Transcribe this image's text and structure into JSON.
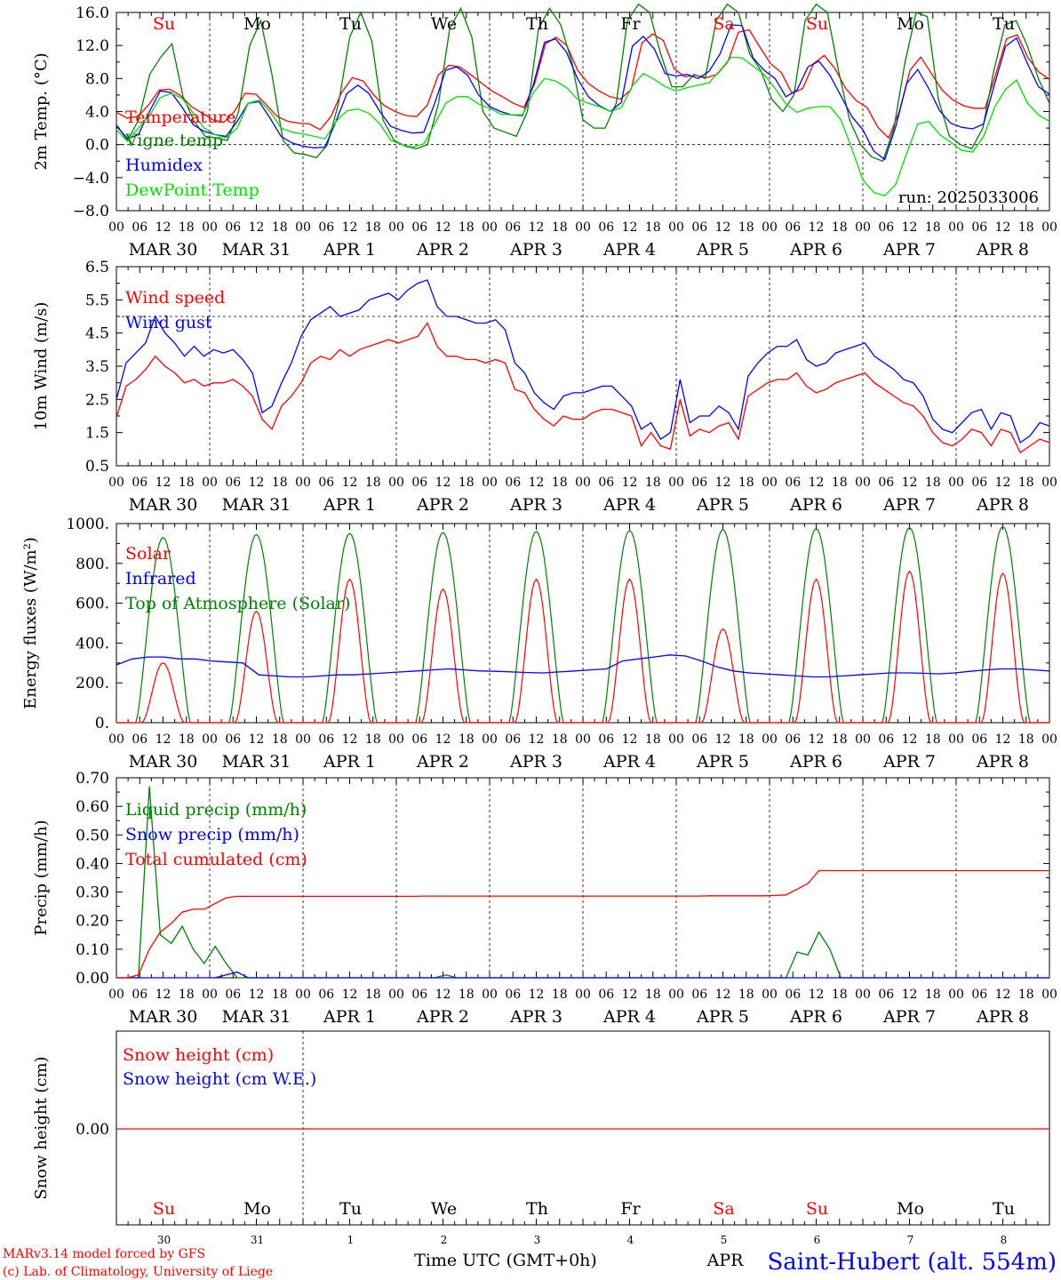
{
  "footer": {
    "model": "MARv3.14 model forced by GFS",
    "credit": "(c) Lab. of Climatology, University of Liege",
    "xlabel": "Time UTC (GMT+0h)",
    "station": "Saint-Hubert (alt. 554m)",
    "overlap_text": "APR"
  },
  "day_labels": [
    "Su",
    "Mo",
    "Tu",
    "We",
    "Th",
    "Fr",
    "Sa",
    "Su",
    "Mo",
    "Tu"
  ],
  "weekend_flags": [
    true,
    false,
    false,
    false,
    false,
    false,
    true,
    true,
    false,
    false
  ],
  "date_labels": [
    "MAR 30",
    "MAR 31",
    "APR  1",
    "APR  2",
    "APR  3",
    "APR  4",
    "APR  5",
    "APR  6",
    "APR  7",
    "APR  8"
  ],
  "day_numbers": [
    "30",
    "31",
    "1",
    "2",
    "3",
    "4",
    "5",
    "6",
    "7",
    "8"
  ],
  "hour_ticks": [
    "00",
    "06",
    "12",
    "18"
  ],
  "hour_end": "00",
  "colors": {
    "red": "#ff0000",
    "blue": "#0000ff",
    "dgreen": "#008000",
    "lgreen": "#00e000"
  },
  "chart_data": [
    {
      "type": "line",
      "ylabel": "2m Temp. (°C)",
      "ylim": [
        -8,
        16
      ],
      "yticks": [
        "16.0",
        "12.0",
        "8.0",
        "4.0",
        "0.0",
        "−4.0",
        "−8.0"
      ],
      "run_label": "run: 2025033006",
      "x_hours_step": 3,
      "series": [
        {
          "name": "Temperature",
          "color": "red",
          "values": [
            3.9,
            3.2,
            3.4,
            4.8,
            6.6,
            6.7,
            5.9,
            4.6,
            3.8,
            3.0,
            2.7,
            4.0,
            6.2,
            6.1,
            4.8,
            3.4,
            2.8,
            2.6,
            2.5,
            1.8,
            3.4,
            6.3,
            8.1,
            7.7,
            6.0,
            4.7,
            4.0,
            3.5,
            3.4,
            4.8,
            8.4,
            9.6,
            9.4,
            8.5,
            7.5,
            6.5,
            5.8,
            5.0,
            4.5,
            7.4,
            12.2,
            13.0,
            12.0,
            9.0,
            7.4,
            6.5,
            5.8,
            5.5,
            6.7,
            12.3,
            13.4,
            12.6,
            9.2,
            8.2,
            8.4,
            8.1,
            8.5,
            10.0,
            13.6,
            13.9,
            11.8,
            9.8,
            8.7,
            6.2,
            6.8,
            9.8,
            10.8,
            9.2,
            6.8,
            5.3,
            4.5,
            2.1,
            0.8,
            4.0,
            9.0,
            10.6,
            8.6,
            6.6,
            5.4,
            4.7,
            4.4,
            4.4,
            8.6,
            12.8,
            13.3,
            10.5,
            8.8,
            7.9
          ]
        },
        {
          "name": "Vigne temp",
          "color": "dgreen",
          "values": [
            2.4,
            0.5,
            3.0,
            8.5,
            10.6,
            12.2,
            5.8,
            2.8,
            1.0,
            0.8,
            0.5,
            4.0,
            12.0,
            15.0,
            8.5,
            0.5,
            -1.0,
            -1.2,
            -1.6,
            0.0,
            5.0,
            13.0,
            16.0,
            12.5,
            3.0,
            0.5,
            -0.2,
            -0.5,
            0.0,
            5.0,
            14.0,
            16.5,
            13.0,
            4.0,
            2.0,
            1.5,
            1.0,
            4.0,
            14.0,
            16.5,
            14.5,
            10.0,
            3.0,
            2.0,
            2.0,
            5.0,
            15.0,
            17.0,
            16.0,
            11.0,
            7.0,
            7.0,
            8.5,
            8.0,
            15.0,
            17.0,
            16.0,
            11.0,
            9.0,
            5.5,
            4.0,
            6.0,
            15.0,
            17.0,
            16.0,
            9.0,
            3.0,
            0.0,
            -1.5,
            -2.0,
            2.0,
            10.0,
            16.0,
            15.5,
            5.5,
            1.0,
            0.0,
            -0.5,
            2.0,
            9.0,
            14.5,
            15.0,
            12.0,
            8.0,
            5.0
          ]
        },
        {
          "name": "Humidex",
          "color": "blue",
          "values": [
            2.3,
            0.7,
            1.2,
            4.0,
            6.5,
            6.3,
            4.5,
            2.4,
            1.6,
            1.2,
            1.0,
            2.8,
            5.0,
            5.2,
            3.2,
            1.0,
            0.2,
            -0.2,
            -0.4,
            -0.3,
            2.8,
            6.2,
            7.2,
            6.2,
            4.0,
            2.2,
            1.7,
            1.4,
            1.5,
            5.0,
            9.0,
            9.4,
            8.4,
            6.0,
            4.6,
            4.0,
            3.6,
            3.5,
            7.3,
            12.4,
            12.8,
            11.2,
            8.0,
            5.8,
            4.7,
            4.0,
            5.1,
            11.9,
            13.1,
            11.6,
            8.6,
            8.3,
            8.5,
            8.0,
            8.9,
            11.0,
            14.5,
            14.4,
            10.5,
            9.0,
            8.0,
            5.8,
            6.6,
            9.4,
            10.1,
            8.4,
            5.9,
            3.4,
            1.8,
            -0.8,
            -1.8,
            2.2,
            7.4,
            9.1,
            6.8,
            4.1,
            2.6,
            2.1,
            1.9,
            2.5,
            7.3,
            11.9,
            12.9,
            9.8,
            7.0,
            6.1
          ]
        },
        {
          "name": "DewPoint Temp",
          "color": "lgreen",
          "values": [
            1.8,
            0.4,
            2.0,
            3.5,
            5.7,
            6.2,
            5.6,
            3.8,
            2.0,
            1.2,
            0.8,
            2.0,
            5.0,
            5.4,
            4.0,
            2.0,
            1.5,
            1.3,
            1.0,
            0.7,
            2.8,
            4.1,
            4.3,
            3.8,
            2.5,
            0.5,
            0.0,
            -0.3,
            0.1,
            2.5,
            5.0,
            5.8,
            5.8,
            4.9,
            4.4,
            3.7,
            3.6,
            3.6,
            6.3,
            8.0,
            7.7,
            6.9,
            5.5,
            5.0,
            4.6,
            4.0,
            4.5,
            7.1,
            8.6,
            7.9,
            7.0,
            6.5,
            6.9,
            7.2,
            7.5,
            9.0,
            10.6,
            10.5,
            9.5,
            8.5,
            6.8,
            4.9,
            3.9,
            4.4,
            4.6,
            4.6,
            3.0,
            -0.5,
            -4.3,
            -5.8,
            -6.2,
            -4.8,
            -1.0,
            2.5,
            2.8,
            1.2,
            0.3,
            -0.7,
            -0.9,
            1.0,
            4.5,
            6.7,
            7.8,
            5.0,
            3.6,
            2.8
          ]
        }
      ]
    },
    {
      "type": "line",
      "ylabel": "10m Wind (m/s)",
      "ylim": [
        0.5,
        6.5
      ],
      "yticks": [
        "6.5",
        "5.5",
        "4.5",
        "3.5",
        "2.5",
        "1.5",
        "0.5"
      ],
      "x_hours_step": 3,
      "series": [
        {
          "name": "Wind speed",
          "color": "red",
          "values": [
            1.95,
            2.9,
            3.1,
            3.4,
            3.8,
            3.5,
            3.3,
            3.0,
            3.1,
            2.9,
            3.0,
            3.0,
            3.1,
            2.9,
            2.6,
            1.9,
            1.6,
            2.3,
            2.6,
            3.0,
            3.6,
            3.8,
            3.7,
            4.0,
            3.8,
            4.0,
            4.1,
            4.2,
            4.3,
            4.2,
            4.3,
            4.4,
            4.8,
            4.1,
            3.8,
            3.8,
            3.7,
            3.7,
            3.6,
            3.7,
            3.6,
            2.8,
            2.7,
            2.2,
            1.9,
            1.7,
            2.0,
            1.9,
            1.9,
            2.1,
            2.2,
            2.2,
            2.1,
            2.0,
            1.1,
            1.5,
            1.1,
            1.0,
            2.5,
            1.4,
            1.6,
            1.5,
            1.7,
            1.8,
            1.3,
            2.6,
            2.8,
            3.0,
            3.1,
            3.1,
            3.3,
            2.9,
            2.7,
            2.8,
            3.0,
            3.1,
            3.2,
            3.3,
            3.0,
            2.8,
            2.6,
            2.4,
            2.3,
            2.0,
            1.5,
            1.2,
            1.1,
            1.3,
            1.6,
            1.5,
            1.1,
            1.6,
            1.5,
            0.9,
            1.1,
            1.3,
            1.2
          ]
        },
        {
          "name": "Wind gust",
          "color": "blue",
          "values": [
            2.5,
            3.6,
            3.9,
            4.2,
            5.0,
            4.5,
            4.2,
            3.8,
            4.1,
            3.8,
            4.0,
            3.9,
            4.0,
            3.7,
            3.3,
            2.1,
            2.3,
            3.0,
            3.6,
            4.4,
            4.9,
            5.1,
            5.3,
            5.0,
            5.1,
            5.2,
            5.5,
            5.6,
            5.7,
            5.5,
            5.8,
            6.0,
            6.1,
            5.3,
            5.0,
            5.0,
            4.9,
            4.8,
            4.8,
            4.9,
            4.6,
            3.6,
            3.3,
            2.7,
            2.4,
            2.2,
            2.6,
            2.7,
            2.7,
            2.8,
            2.9,
            2.9,
            2.6,
            2.3,
            1.6,
            1.8,
            1.3,
            1.5,
            3.1,
            1.8,
            2.0,
            2.0,
            2.3,
            2.1,
            1.6,
            3.2,
            3.6,
            3.9,
            4.1,
            4.1,
            4.3,
            3.7,
            3.5,
            3.6,
            3.9,
            4.0,
            4.1,
            4.2,
            3.8,
            3.6,
            3.4,
            3.1,
            3.0,
            2.6,
            1.9,
            1.6,
            1.5,
            1.8,
            2.1,
            2.2,
            1.6,
            2.1,
            2.0,
            1.2,
            1.4,
            1.8,
            1.7
          ]
        }
      ]
    },
    {
      "type": "line",
      "ylabel": "Energy fluxes (W/m²)",
      "ylim": [
        0,
        1000
      ],
      "yticks": [
        "1000.",
        "800.",
        "600.",
        "400.",
        "200.",
        "0."
      ],
      "series": [
        {
          "name": "Solar",
          "color": "red",
          "peaks": [
            300,
            560,
            720,
            670,
            720,
            720,
            470,
            720,
            760,
            750
          ]
        },
        {
          "name": "Infrared",
          "color": "blue",
          "x_hours_step": 6,
          "values": [
            290,
            320,
            330,
            330,
            320,
            320,
            310,
            305,
            300,
            240,
            235,
            230,
            230,
            235,
            240,
            240,
            245,
            250,
            255,
            260,
            265,
            270,
            265,
            260,
            258,
            255,
            252,
            250,
            255,
            260,
            265,
            270,
            310,
            320,
            330,
            340,
            335,
            310,
            280,
            260,
            250,
            245,
            240,
            235,
            230,
            230,
            235,
            240,
            245,
            250,
            250,
            248,
            245,
            250,
            258,
            265,
            270,
            270,
            265,
            260
          ]
        },
        {
          "name": "Top of Atmosphere (Solar)",
          "color": "dgreen",
          "peaks": [
            930,
            945,
            950,
            955,
            960,
            965,
            970,
            975,
            980,
            985
          ]
        }
      ]
    },
    {
      "type": "line",
      "ylabel": "Precip (mm/h)",
      "ylim": [
        0,
        0.7
      ],
      "yticks": [
        "0.70",
        "0.60",
        "0.50",
        "0.40",
        "0.30",
        "0.20",
        "0.10",
        "0.00"
      ],
      "x_hours_step": 3,
      "series": [
        {
          "name": "Liquid precip (mm/h)",
          "color": "dgreen",
          "values": [
            0,
            0,
            0,
            0.67,
            0.15,
            0.12,
            0.18,
            0.1,
            0.05,
            0.11,
            0.05,
            0,
            0,
            0,
            0,
            0,
            0,
            0,
            0,
            0,
            0,
            0,
            0,
            0,
            0,
            0,
            0,
            0,
            0,
            0,
            0.01,
            0,
            0,
            0,
            0,
            0,
            0,
            0,
            0,
            0,
            0,
            0,
            0,
            0,
            0,
            0,
            0,
            0,
            0,
            0,
            0,
            0,
            0,
            0,
            0,
            0,
            0,
            0,
            0,
            0,
            0,
            0,
            0.09,
            0.08,
            0.16,
            0.1,
            0,
            0,
            0,
            0,
            0,
            0,
            0,
            0,
            0,
            0,
            0,
            0,
            0,
            0,
            0,
            0,
            0,
            0,
            0,
            0
          ]
        },
        {
          "name": "Snow precip (mm/h)",
          "color": "blue",
          "values": [
            0,
            0,
            0,
            0,
            0,
            0,
            0,
            0,
            0,
            0,
            0.01,
            0.02,
            0,
            0,
            0,
            0,
            0,
            0,
            0,
            0,
            0,
            0,
            0,
            0,
            0,
            0,
            0,
            0,
            0,
            0,
            0,
            0,
            0,
            0,
            0,
            0,
            0,
            0,
            0,
            0,
            0,
            0,
            0,
            0,
            0,
            0,
            0,
            0,
            0,
            0,
            0,
            0,
            0,
            0,
            0,
            0,
            0,
            0,
            0,
            0,
            0,
            0,
            0,
            0,
            0,
            0,
            0,
            0,
            0,
            0,
            0,
            0,
            0,
            0,
            0,
            0,
            0,
            0,
            0,
            0,
            0,
            0,
            0,
            0,
            0,
            0
          ]
        },
        {
          "name": "Total cumulated (cm)",
          "color": "red",
          "values": [
            0,
            0,
            0.01,
            0.1,
            0.16,
            0.19,
            0.23,
            0.24,
            0.24,
            0.26,
            0.28,
            0.285,
            0.285,
            0.285,
            0.285,
            0.285,
            0.285,
            0.285,
            0.285,
            0.285,
            0.285,
            0.285,
            0.285,
            0.285,
            0.285,
            0.285,
            0.285,
            0.285,
            0.286,
            0.286,
            0.286,
            0.286,
            0.286,
            0.286,
            0.286,
            0.286,
            0.286,
            0.286,
            0.286,
            0.286,
            0.286,
            0.286,
            0.286,
            0.286,
            0.286,
            0.286,
            0.286,
            0.286,
            0.286,
            0.286,
            0.286,
            0.286,
            0.286,
            0.286,
            0.287,
            0.287,
            0.287,
            0.287,
            0.287,
            0.287,
            0.288,
            0.29,
            0.31,
            0.33,
            0.375,
            0.375,
            0.375,
            0.375,
            0.375,
            0.375,
            0.375,
            0.375,
            0.375,
            0.375,
            0.375,
            0.375,
            0.375,
            0.375,
            0.375,
            0.375,
            0.375,
            0.375,
            0.375,
            0.375,
            0.375,
            0.375
          ]
        }
      ]
    },
    {
      "type": "line",
      "ylabel": "Snow height (cm)",
      "yticks": [
        "0.00"
      ],
      "series": [
        {
          "name": "Snow height (cm)",
          "color": "red",
          "values": [
            0,
            0
          ]
        },
        {
          "name": "Snow height (cm W.E.)",
          "color": "blue",
          "values": [
            0,
            0
          ]
        }
      ]
    }
  ]
}
